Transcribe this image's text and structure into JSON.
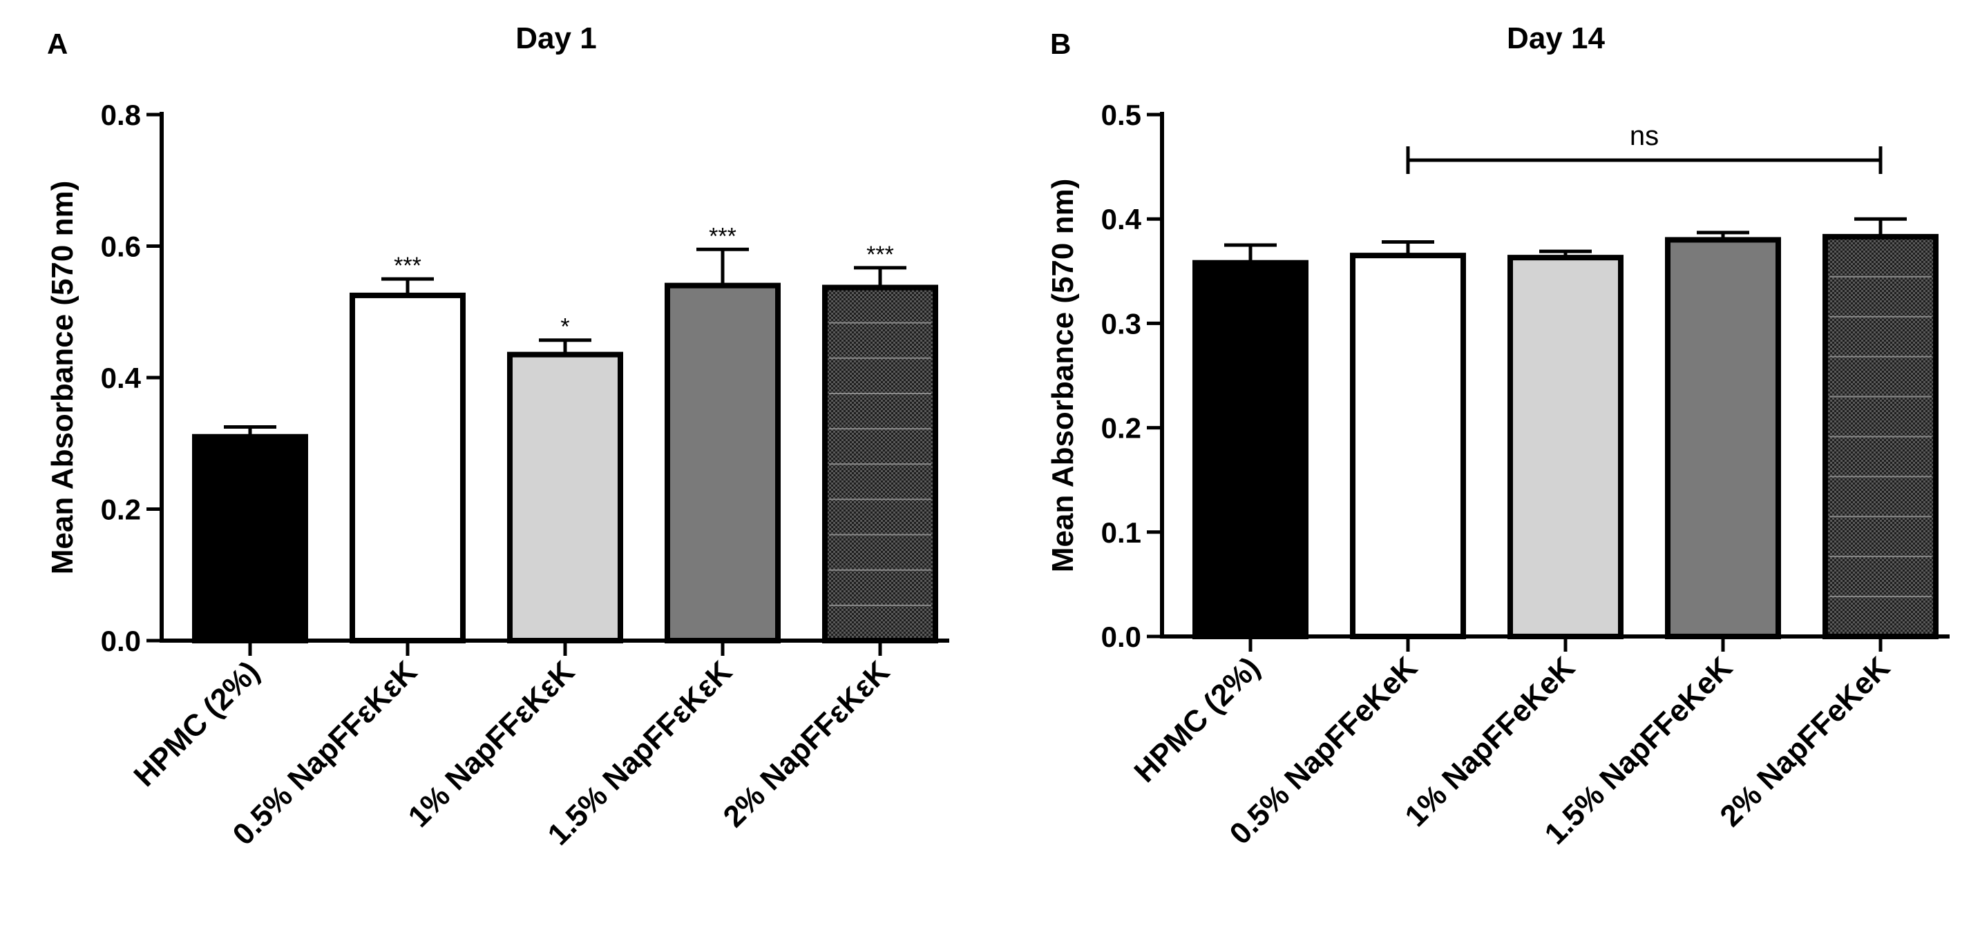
{
  "chart_data": [
    {
      "type": "bar",
      "panel_label": "A",
      "title": "Day 1",
      "xlabel": "",
      "ylabel": "Mean Absorbance (570 nm)",
      "ylim": [
        0,
        0.8
      ],
      "yticks": [
        "0.0",
        "0.2",
        "0.4",
        "0.6",
        "0.8"
      ],
      "categories": [
        "HPMC (2%)",
        "0.5% NapFFεKεK",
        "1% NapFFεKεK",
        "1.5% NapFFεKεK",
        "2% NapFFεKεK"
      ],
      "values": [
        0.31,
        0.525,
        0.435,
        0.54,
        0.537
      ],
      "errors": [
        0.015,
        0.025,
        0.022,
        0.055,
        0.03
      ],
      "significance": [
        "",
        "***",
        "*",
        "***",
        "***"
      ],
      "fills": [
        "#000000",
        "#ffffff",
        "#d3d3d3",
        "#7a7a7a",
        "pattern"
      ]
    },
    {
      "type": "bar",
      "panel_label": "B",
      "title": "Day 14",
      "xlabel": "",
      "ylabel": "Mean Absorbance (570 nm)",
      "ylim": [
        0,
        0.5
      ],
      "yticks": [
        "0.0",
        "0.1",
        "0.2",
        "0.3",
        "0.4",
        "0.5"
      ],
      "categories": [
        "HPMC (2%)",
        "0.5% NapFFeKeK",
        "1% NapFFeKeK",
        "1.5% NapFFeKeK",
        "2% NapFFeKeK"
      ],
      "values": [
        0.358,
        0.365,
        0.363,
        0.38,
        0.383
      ],
      "errors": [
        0.017,
        0.013,
        0.006,
        0.007,
        0.017
      ],
      "significance": [
        "",
        "",
        "",
        "",
        ""
      ],
      "bracket": {
        "label": "ns",
        "from": 1,
        "to": 4
      },
      "fills": [
        "#000000",
        "#ffffff",
        "#d3d3d3",
        "#7a7a7a",
        "pattern"
      ]
    }
  ]
}
